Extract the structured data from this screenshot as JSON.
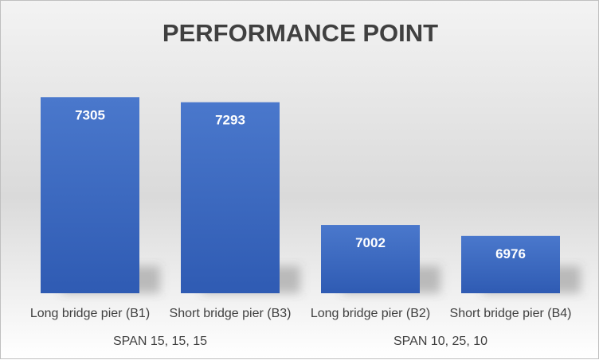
{
  "chart_data": {
    "type": "bar",
    "title": "PERFORMANCE POINT",
    "categories": [
      "Long bridge pier (B1)",
      "Short bridge pier (B3)",
      "Long bridge pier (B2)",
      "Short bridge pier (B4)"
    ],
    "groups": [
      {
        "label": "SPAN 15, 15, 15",
        "span": [
          0,
          1
        ]
      },
      {
        "label": "SPAN 10, 25, 10",
        "span": [
          2,
          3
        ]
      }
    ],
    "values": [
      7305,
      7293,
      7002,
      6976
    ],
    "value_labels": [
      "7305",
      "7293",
      "7002",
      "6976"
    ],
    "ylim": [
      6840,
      7330
    ],
    "data_labels": "inside-top",
    "grid": false,
    "legend": "none",
    "bar_color": "#4472c4"
  }
}
